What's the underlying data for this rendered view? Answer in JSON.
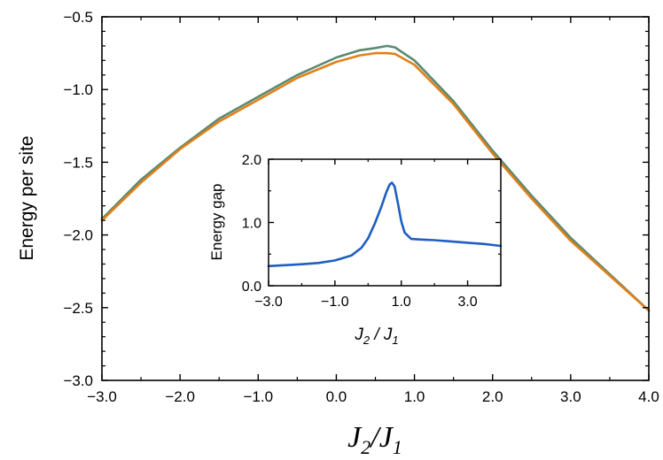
{
  "chart_data": [
    {
      "type": "line",
      "xlabel": {
        "base": "J",
        "sub1": "2",
        "sep": "/J",
        "sub2": "1"
      },
      "ylabel": "Energy per site",
      "xlim": [
        -3.0,
        4.0
      ],
      "ylim": [
        -3.0,
        -0.5
      ],
      "x_ticks": [
        -3.0,
        -2.0,
        -1.0,
        0.0,
        1.0,
        2.0,
        3.0,
        4.0
      ],
      "x_tick_labels": [
        "−3.0",
        "−2.0",
        "−1.0",
        "0.0",
        "1.0",
        "2.0",
        "3.0",
        "4.0"
      ],
      "y_ticks": [
        -3.0,
        -2.5,
        -2.0,
        -1.5,
        -1.0,
        -0.5
      ],
      "y_tick_labels": [
        "−3.0",
        "−2.5",
        "−2.0",
        "−1.5",
        "−1.0",
        "−0.5"
      ],
      "series": [
        {
          "color": "#5a8a72",
          "x": [
            -3.0,
            -2.5,
            -2.0,
            -1.5,
            -1.0,
            -0.5,
            0.0,
            0.3,
            0.5,
            0.65,
            0.75,
            1.0,
            1.5,
            2.0,
            2.5,
            3.0,
            3.5,
            4.0
          ],
          "y": [
            -1.89,
            -1.62,
            -1.4,
            -1.2,
            -1.05,
            -0.9,
            -0.78,
            -0.73,
            -0.715,
            -0.7,
            -0.71,
            -0.8,
            -1.08,
            -1.42,
            -1.73,
            -2.02,
            -2.27,
            -2.52
          ]
        },
        {
          "color": "#e0801a",
          "x": [
            -3.0,
            -2.5,
            -2.0,
            -1.5,
            -1.0,
            -0.5,
            0.0,
            0.3,
            0.5,
            0.65,
            0.75,
            1.0,
            1.5,
            2.0,
            2.5,
            3.0,
            3.5,
            4.0
          ],
          "y": [
            -1.9,
            -1.64,
            -1.41,
            -1.22,
            -1.07,
            -0.92,
            -0.81,
            -0.765,
            -0.75,
            -0.75,
            -0.755,
            -0.83,
            -1.1,
            -1.44,
            -1.75,
            -2.04,
            -2.28,
            -2.52
          ]
        }
      ]
    },
    {
      "type": "line",
      "xlabel": {
        "base": "J",
        "sub1": "2",
        "sep": " / J",
        "sub2": "1"
      },
      "ylabel": "Energy gap",
      "xlim": [
        -3.0,
        4.0
      ],
      "ylim": [
        0.0,
        2.0
      ],
      "x_ticks": [
        -3.0,
        -1.0,
        1.0,
        3.0
      ],
      "x_tick_labels": [
        "−3.0",
        "−1.0",
        "1.0",
        "3.0"
      ],
      "y_ticks": [
        0.0,
        1.0,
        2.0
      ],
      "y_tick_labels": [
        "0.0",
        "1.0",
        "2.0"
      ],
      "series": [
        {
          "color": "#1f5fc0",
          "x": [
            -3.0,
            -2.0,
            -1.5,
            -1.0,
            -0.5,
            -0.2,
            0.0,
            0.2,
            0.4,
            0.55,
            0.65,
            0.72,
            0.8,
            0.9,
            1.0,
            1.1,
            1.3,
            1.6,
            2.0,
            2.5,
            3.0,
            3.5,
            4.0
          ],
          "y": [
            0.31,
            0.34,
            0.36,
            0.4,
            0.48,
            0.6,
            0.75,
            0.98,
            1.25,
            1.48,
            1.6,
            1.63,
            1.57,
            1.3,
            1.02,
            0.84,
            0.74,
            0.73,
            0.72,
            0.7,
            0.68,
            0.66,
            0.63
          ]
        }
      ]
    }
  ]
}
